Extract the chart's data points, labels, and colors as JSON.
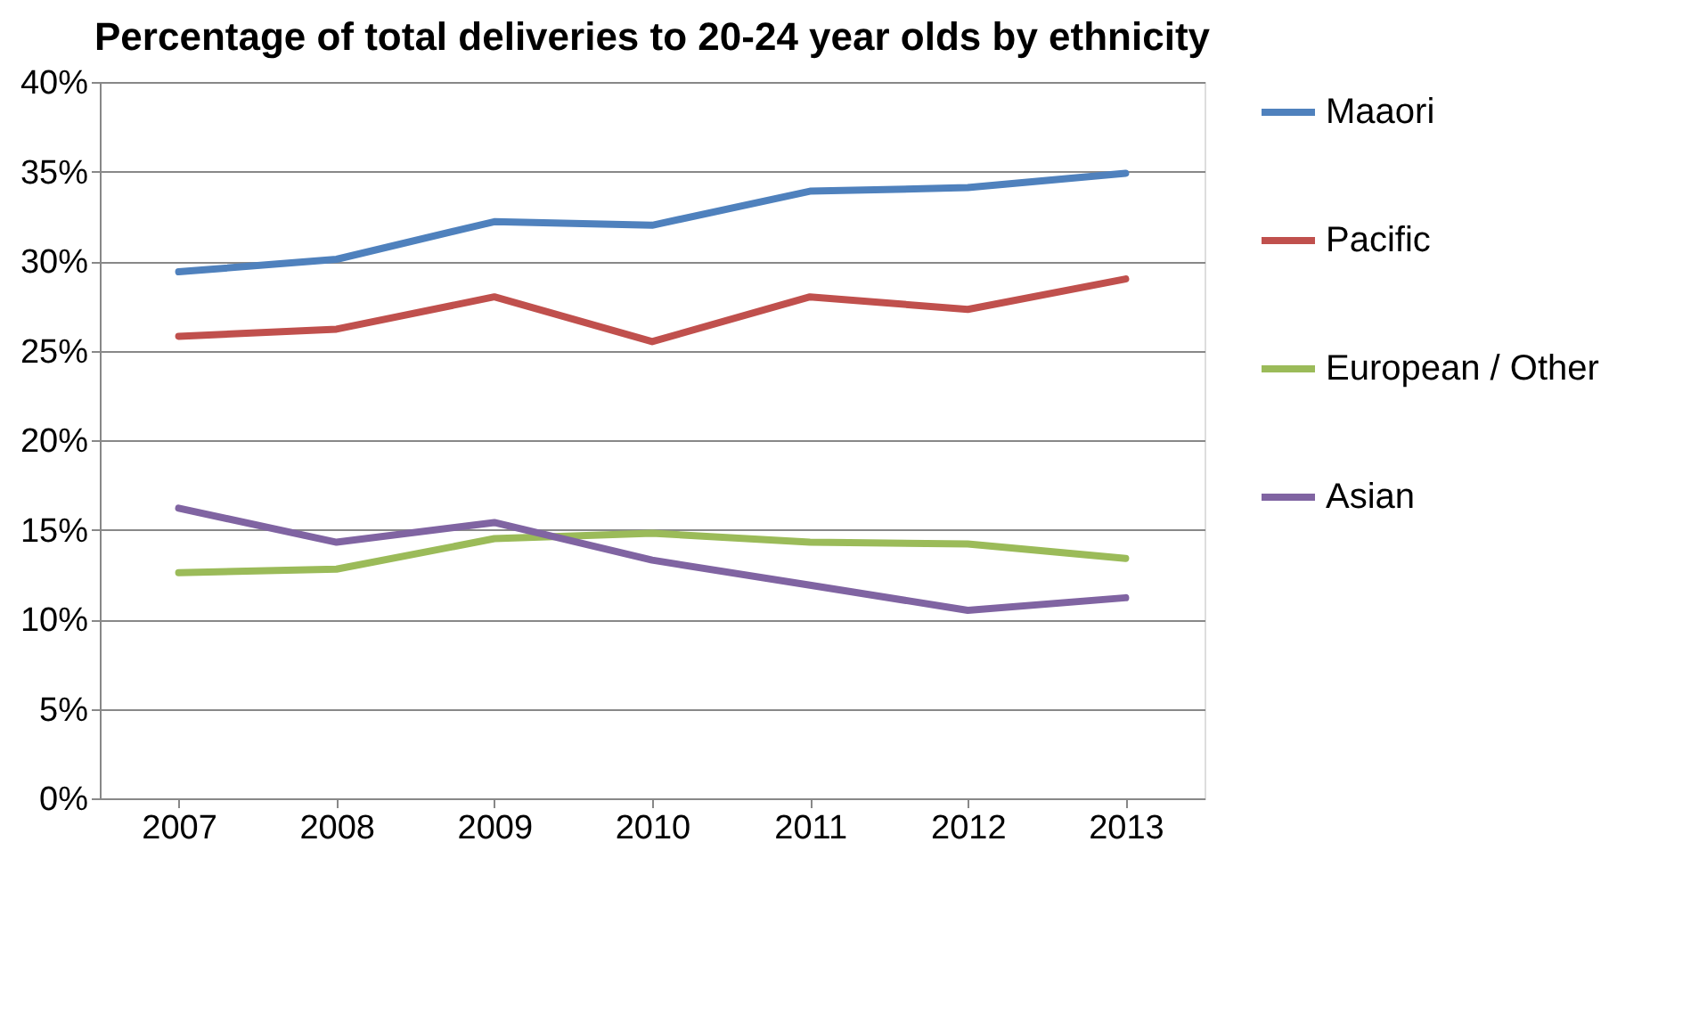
{
  "chart_data": {
    "type": "line",
    "title": "Percentage of total deliveries to 20-24 year olds by ethnicity",
    "categories": [
      "2007",
      "2008",
      "2009",
      "2010",
      "2011",
      "2012",
      "2013"
    ],
    "series": [
      {
        "name": "Maaori",
        "color": "#4f81bd",
        "values": [
          29.4,
          30.1,
          32.2,
          32.0,
          33.9,
          34.1,
          34.9
        ]
      },
      {
        "name": "Pacific",
        "color": "#c0504d",
        "values": [
          25.8,
          26.2,
          28.0,
          25.5,
          28.0,
          27.3,
          29.0
        ]
      },
      {
        "name": "European / Other",
        "color": "#9bbb59",
        "values": [
          12.6,
          12.8,
          14.5,
          14.8,
          14.3,
          14.2,
          13.4
        ]
      },
      {
        "name": "Asian",
        "color": "#8064a2",
        "values": [
          16.2,
          14.3,
          15.4,
          13.3,
          11.9,
          10.5,
          11.2
        ]
      }
    ],
    "ylim": [
      0,
      40
    ],
    "yticks": [
      {
        "value": 0,
        "label": "0%"
      },
      {
        "value": 5,
        "label": "5%"
      },
      {
        "value": 10,
        "label": "10%"
      },
      {
        "value": 15,
        "label": "15%"
      },
      {
        "value": 20,
        "label": "20%"
      },
      {
        "value": 25,
        "label": "25%"
      },
      {
        "value": 30,
        "label": "30%"
      },
      {
        "value": 35,
        "label": "35%"
      },
      {
        "value": 40,
        "label": "40%"
      }
    ],
    "grid": "y",
    "legend": "right",
    "marker": "none",
    "line_style": "solid"
  }
}
